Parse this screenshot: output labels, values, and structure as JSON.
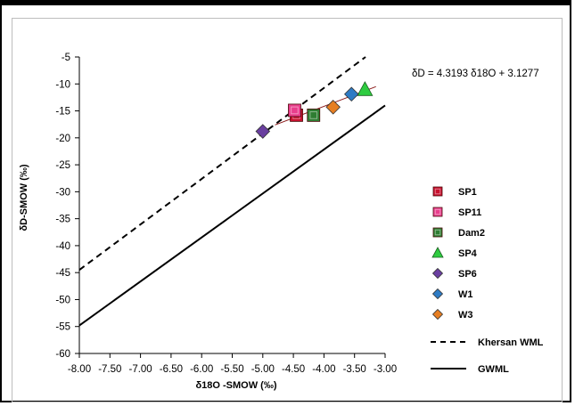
{
  "chart_data": {
    "type": "scatter",
    "title": "",
    "xlabel": "δ18O -SMOW (‰)",
    "ylabel": "δD-SMOW (‰)",
    "xlim": [
      -8.0,
      -3.0
    ],
    "ylim": [
      -60,
      -5
    ],
    "xticks": [
      -8.0,
      -7.5,
      -7.0,
      -6.5,
      -6.0,
      -5.5,
      -5.0,
      -4.5,
      -4.0,
      -3.5,
      -3.0
    ],
    "xtick_labels": [
      "-8.00",
      "-7.50",
      "-7.00",
      "-6.50",
      "-6.00",
      "-5.50",
      "-5.00",
      "-4.50",
      "-4.00",
      "-3.50",
      "-3.00"
    ],
    "yticks": [
      -60,
      -55,
      -50,
      -45,
      -40,
      -35,
      -30,
      -25,
      -20,
      -15,
      -10,
      -5
    ],
    "ytick_labels": [
      "-60",
      "-55",
      "-50",
      "-45",
      "-40",
      "-35",
      "-30",
      "-25",
      "-20",
      "-15",
      "-10",
      "-5"
    ],
    "grid": false,
    "legend_position": "right",
    "series": [
      {
        "name": "SP1",
        "marker": "square",
        "color": "#c8102e",
        "x": [
          -4.45
        ],
        "y": [
          -15.8
        ]
      },
      {
        "name": "SP11",
        "marker": "square",
        "color": "#e83e8c",
        "x": [
          -4.48
        ],
        "y": [
          -14.9
        ]
      },
      {
        "name": "Dam2",
        "marker": "square",
        "color": "#2e7d32",
        "x": [
          -4.17
        ],
        "y": [
          -15.8
        ]
      },
      {
        "name": "SP4",
        "marker": "triangle",
        "color": "#2ecc40",
        "x": [
          -3.33
        ],
        "y": [
          -11.0
        ]
      },
      {
        "name": "SP6",
        "marker": "diamond",
        "color": "#6a3fa0",
        "x": [
          -5.0
        ],
        "y": [
          -18.8
        ]
      },
      {
        "name": "W1",
        "marker": "diamond",
        "color": "#2e7bc4",
        "x": [
          -3.55
        ],
        "y": [
          -11.9
        ]
      },
      {
        "name": "W3",
        "marker": "diamond",
        "color": "#e67e22",
        "x": [
          -3.85
        ],
        "y": [
          -14.3
        ]
      }
    ],
    "lines": [
      {
        "name": "Khersan WML",
        "style": "dashed",
        "color": "#000000",
        "x": [
          -8.0,
          -3.32
        ],
        "y": [
          -44.5,
          -5.0
        ]
      },
      {
        "name": "GWML",
        "style": "solid",
        "color": "#000000",
        "x": [
          -8.0,
          -3.0
        ],
        "y": [
          -54.8,
          -14.0
        ]
      },
      {
        "name": "trend",
        "style": "solid",
        "color": "#8b1a1a",
        "x": [
          -4.8,
          -3.15
        ],
        "y": [
          -17.6,
          -10.5
        ]
      }
    ],
    "annotation": "δD = 4.3193 δ18O  + 3.1277",
    "annotation_anchor": {
      "x": -3.15,
      "y": -9.5
    }
  }
}
